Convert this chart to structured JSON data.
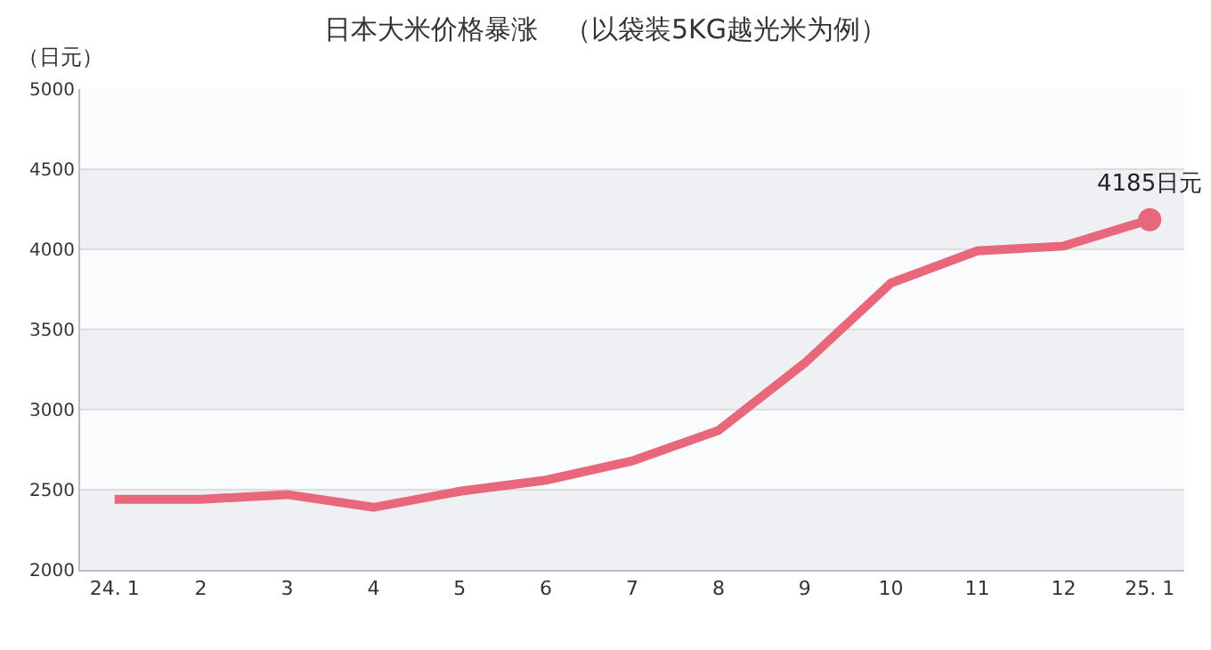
{
  "chart_data": {
    "type": "line",
    "title": "日本大米价格暴涨　（以袋装5KG越光米为例）",
    "ylabel": "（日元）",
    "categories": [
      "24. 1",
      "2",
      "3",
      "4",
      "5",
      "6",
      "7",
      "8",
      "9",
      "10",
      "11",
      "12",
      "25. 1"
    ],
    "series": [
      {
        "color": "#e8677a",
        "values": [
          2440,
          2440,
          2470,
          2390,
          2490,
          2560,
          2680,
          2870,
          3290,
          3790,
          3990,
          4020,
          4185
        ]
      }
    ],
    "ylim": [
      2000,
      5000
    ],
    "yticks": [
      2000,
      2500,
      3000,
      3500,
      4000,
      4500,
      5000
    ],
    "grid": "y",
    "marker": "none",
    "line_style": "solid",
    "annotations": [
      {
        "text": "4185日元",
        "x": "25. 1",
        "y": 4185
      }
    ]
  }
}
